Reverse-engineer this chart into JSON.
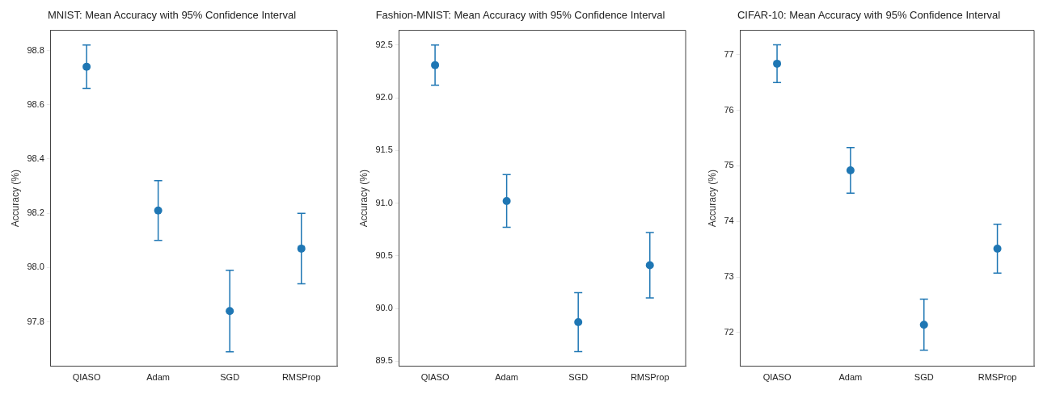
{
  "chart_data": [
    {
      "type": "scatter",
      "title": "MNIST: Mean Accuracy with 95% Confidence Interval",
      "ylabel": "Accuracy (%)",
      "categories": [
        "QIASO",
        "Adam",
        "SGD",
        "RMSProp"
      ],
      "values": [
        98.74,
        98.21,
        97.84,
        98.07
      ],
      "errors": [
        [
          98.66,
          98.82
        ],
        [
          98.1,
          98.32
        ],
        [
          97.69,
          97.99
        ],
        [
          97.94,
          98.2
        ]
      ],
      "color": "#1f77b4",
      "marker": "circle",
      "grid": false,
      "ylim": [
        97.636,
        98.874
      ],
      "yticks": [
        97.8,
        {
          "value": 98,
          "label": "98.0"
        },
        98.2,
        98.4,
        98.6,
        98.8
      ]
    },
    {
      "type": "scatter",
      "title": "Fashion-MNIST: Mean Accuracy with 95% Confidence Interval",
      "ylabel": "Accuracy (%)",
      "categories": [
        "QIASO",
        "Adam",
        "SGD",
        "RMSProp"
      ],
      "values": [
        92.31,
        91.02,
        89.87,
        90.41
      ],
      "errors": [
        [
          92.12,
          92.5
        ],
        [
          90.77,
          91.27
        ],
        [
          89.59,
          90.15
        ],
        [
          90.1,
          90.72
        ]
      ],
      "color": "#1f77b4",
      "marker": "circle",
      "grid": false,
      "ylim": [
        89.45,
        92.64
      ],
      "yticks": [
        89.5,
        {
          "value": 90,
          "label": "90.0"
        },
        90.5,
        {
          "value": 91,
          "label": "91.0"
        },
        91.5,
        {
          "value": 92,
          "label": "92.0"
        },
        92.5
      ]
    },
    {
      "type": "scatter",
      "title": "CIFAR-10: Mean Accuracy with 95% Confidence Interval",
      "ylabel": "Accuracy (%)",
      "categories": [
        "QIASO",
        "Adam",
        "SGD",
        "RMSProp"
      ],
      "values": [
        76.84,
        74.92,
        72.14,
        73.51
      ],
      "errors": [
        [
          76.5,
          77.18
        ],
        [
          74.51,
          75.33
        ],
        [
          71.68,
          72.6
        ],
        [
          73.07,
          73.95
        ]
      ],
      "color": "#1f77b4",
      "marker": "circle",
      "grid": false,
      "ylim": [
        71.39,
        77.44
      ],
      "yticks": [
        72,
        73,
        74,
        75,
        76,
        77
      ]
    }
  ]
}
